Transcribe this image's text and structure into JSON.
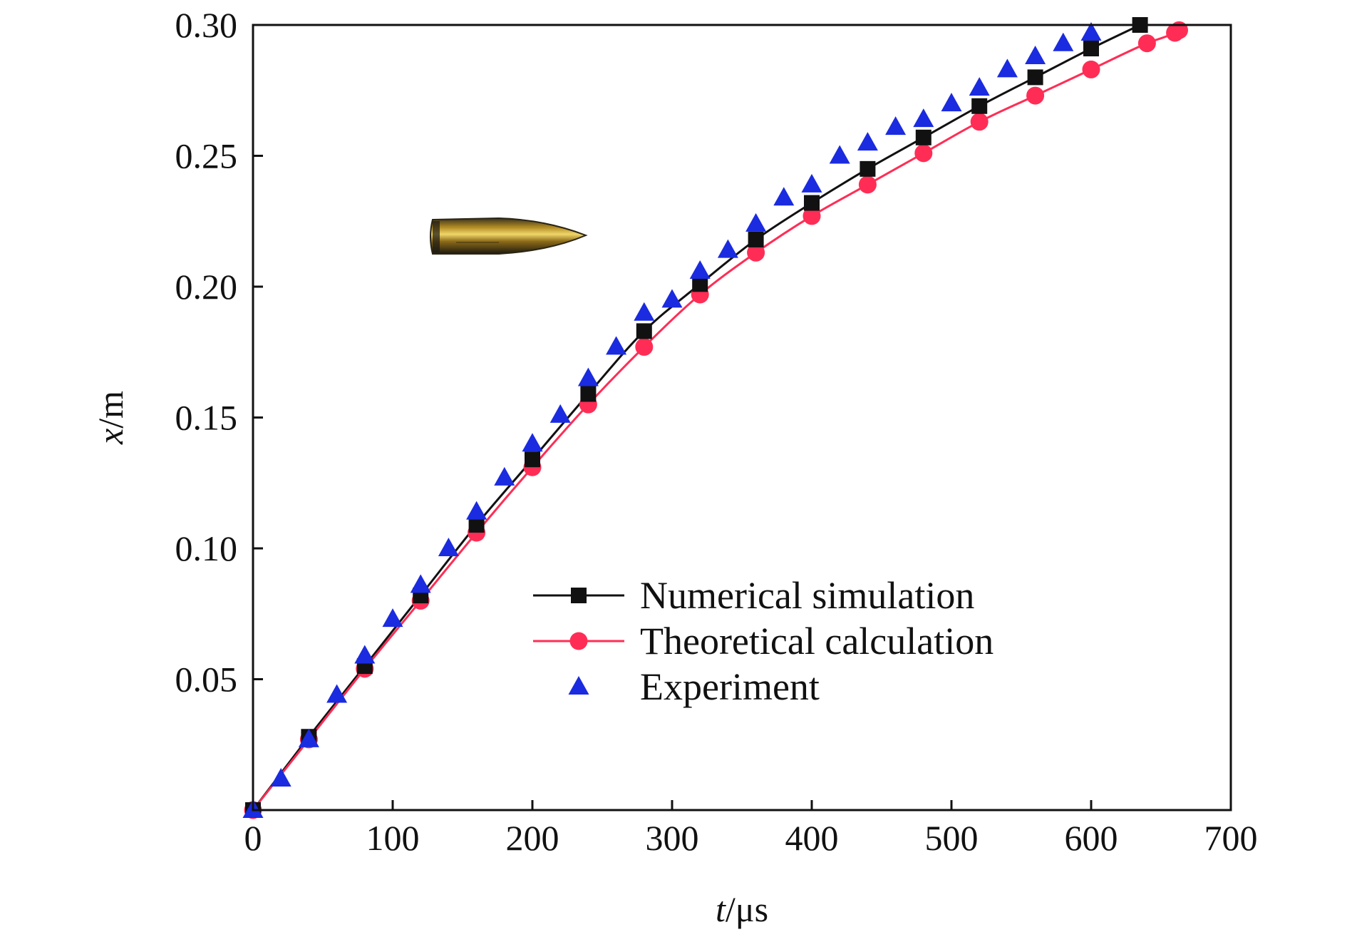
{
  "chart_data": {
    "type": "line",
    "xlabel": {
      "var": "t",
      "unit": "/μs"
    },
    "ylabel": {
      "var": "x",
      "unit": "/m"
    },
    "xlim": [
      0,
      700
    ],
    "ylim": [
      0,
      0.3
    ],
    "xticks": [
      0,
      100,
      200,
      300,
      400,
      500,
      600,
      700
    ],
    "xtick_labels": [
      "0",
      "100",
      "200",
      "300",
      "400",
      "500",
      "600",
      "700"
    ],
    "yticks": [
      0.05,
      0.1,
      0.15,
      0.2,
      0.25,
      0.3
    ],
    "ytick_labels": [
      "0.05",
      "0.10",
      "0.15",
      "0.20",
      "0.25",
      "0.30"
    ],
    "grid": false,
    "legend_position": "center-right",
    "series": [
      {
        "name": "Numerical simulation",
        "marker": "square",
        "line": true,
        "color": "#111111",
        "x": [
          0,
          40,
          80,
          120,
          160,
          200,
          240,
          280,
          320,
          360,
          400,
          440,
          480,
          520,
          560,
          600,
          635
        ],
        "y": [
          0,
          0.028,
          0.055,
          0.082,
          0.109,
          0.134,
          0.159,
          0.183,
          0.201,
          0.218,
          0.232,
          0.245,
          0.257,
          0.269,
          0.28,
          0.291,
          0.3
        ]
      },
      {
        "name": "Theoretical calculation",
        "marker": "circle",
        "line": true,
        "color": "#ff2d55",
        "x": [
          0,
          40,
          80,
          120,
          160,
          200,
          240,
          280,
          320,
          360,
          400,
          440,
          480,
          520,
          560,
          600,
          640,
          660,
          663
        ],
        "y": [
          0,
          0.027,
          0.054,
          0.08,
          0.106,
          0.131,
          0.155,
          0.177,
          0.197,
          0.213,
          0.227,
          0.239,
          0.251,
          0.263,
          0.273,
          0.283,
          0.293,
          0.297,
          0.298
        ]
      },
      {
        "name": "Experiment",
        "marker": "triangle",
        "line": false,
        "color": "#1a2be0",
        "x": [
          0,
          20,
          40,
          60,
          80,
          100,
          120,
          140,
          160,
          180,
          200,
          220,
          240,
          260,
          280,
          300,
          320,
          340,
          360,
          380,
          400,
          420,
          440,
          460,
          480,
          500,
          520,
          540,
          560,
          580,
          600
        ],
        "y": [
          0,
          0.012,
          0.027,
          0.044,
          0.059,
          0.073,
          0.086,
          0.1,
          0.114,
          0.127,
          0.14,
          0.151,
          0.165,
          0.177,
          0.19,
          0.195,
          0.206,
          0.214,
          0.224,
          0.234,
          0.239,
          0.25,
          0.255,
          0.261,
          0.264,
          0.27,
          0.276,
          0.283,
          0.288,
          0.293,
          0.297
        ]
      }
    ]
  }
}
